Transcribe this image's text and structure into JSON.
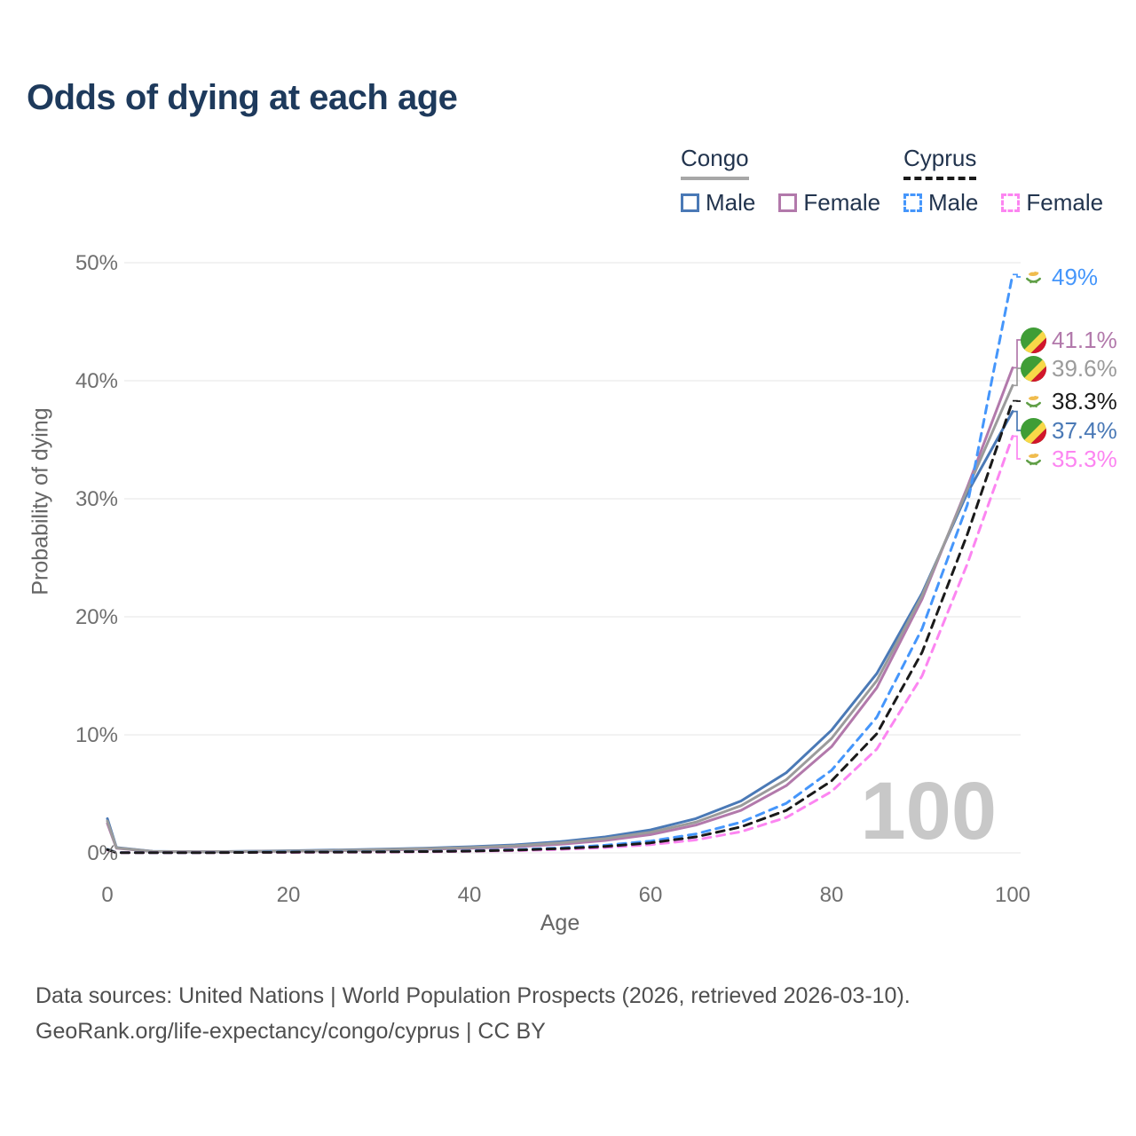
{
  "title": "Odds of dying at each age",
  "legend": {
    "groups": [
      {
        "label": "Congo",
        "line_style": "solid",
        "items": [
          {
            "label": "Male",
            "color": "#4a79b6",
            "dash": "solid"
          },
          {
            "label": "Female",
            "color": "#b279ab",
            "dash": "solid"
          }
        ]
      },
      {
        "label": "Cyprus",
        "line_style": "dashed",
        "items": [
          {
            "label": "Male",
            "color": "#4596fb",
            "dash": "dashed"
          },
          {
            "label": "Female",
            "color": "#fc85f1",
            "dash": "dashed"
          }
        ]
      }
    ]
  },
  "chart_data": {
    "type": "line",
    "title": "Odds of dying at each age",
    "xlabel": "Age",
    "ylabel": "Probability of dying",
    "xlim": [
      0,
      100
    ],
    "ylim": [
      0,
      50
    ],
    "x_ticks": [
      0,
      20,
      40,
      60,
      80,
      100
    ],
    "y_ticks": [
      0,
      10,
      20,
      30,
      40,
      50
    ],
    "y_tick_labels": [
      "0%",
      "10%",
      "20%",
      "30%",
      "40%",
      "50%"
    ],
    "grid": "horizontal",
    "legend_position": "top-right",
    "x": [
      0,
      1,
      5,
      10,
      15,
      20,
      25,
      30,
      35,
      40,
      45,
      50,
      55,
      60,
      65,
      70,
      75,
      80,
      85,
      90,
      95,
      100
    ],
    "unit": "percent probability of dying at each age",
    "series": [
      {
        "name": "Congo Male",
        "country": "Congo",
        "sex": "Male",
        "color": "#4a79b6",
        "dash": "solid",
        "values": [
          2.9,
          0.45,
          0.13,
          0.1,
          0.13,
          0.18,
          0.24,
          0.31,
          0.4,
          0.52,
          0.68,
          0.95,
          1.35,
          1.95,
          2.9,
          4.4,
          6.8,
          10.4,
          15.2,
          22.0,
          30.5,
          37.4
        ]
      },
      {
        "name": "Congo Female",
        "country": "Congo",
        "sex": "Female",
        "color": "#b279ab",
        "dash": "solid",
        "values": [
          2.5,
          0.4,
          0.11,
          0.09,
          0.11,
          0.14,
          0.18,
          0.23,
          0.3,
          0.39,
          0.52,
          0.73,
          1.05,
          1.55,
          2.35,
          3.6,
          5.7,
          9.0,
          14.0,
          21.5,
          31.0,
          41.1
        ]
      },
      {
        "name": "Congo Both sexes",
        "country": "Congo",
        "sex": "Both",
        "color": "#9b9b9b",
        "dash": "solid",
        "values": [
          2.7,
          0.42,
          0.12,
          0.095,
          0.12,
          0.16,
          0.21,
          0.27,
          0.35,
          0.45,
          0.6,
          0.84,
          1.2,
          1.75,
          2.6,
          4.0,
          6.2,
          9.7,
          14.6,
          21.8,
          30.8,
          39.6
        ]
      },
      {
        "name": "Cyprus Male",
        "country": "Cyprus",
        "sex": "Male",
        "color": "#4596fb",
        "dash": "dashed",
        "values": [
          0.3,
          0.03,
          0.02,
          0.02,
          0.05,
          0.08,
          0.09,
          0.1,
          0.13,
          0.18,
          0.27,
          0.42,
          0.65,
          1.0,
          1.6,
          2.6,
          4.2,
          7.0,
          11.5,
          19.0,
          29.5,
          49.0
        ]
      },
      {
        "name": "Cyprus Female",
        "country": "Cyprus",
        "sex": "Female",
        "color": "#fc85f1",
        "dash": "dashed",
        "values": [
          0.25,
          0.02,
          0.015,
          0.015,
          0.03,
          0.04,
          0.05,
          0.06,
          0.09,
          0.13,
          0.19,
          0.29,
          0.45,
          0.7,
          1.1,
          1.8,
          3.0,
          5.2,
          8.8,
          15.0,
          24.5,
          35.3
        ]
      },
      {
        "name": "Cyprus Both sexes",
        "country": "Cyprus",
        "sex": "Both",
        "color": "#1a1a1a",
        "dash": "dashed",
        "values": [
          0.28,
          0.025,
          0.018,
          0.018,
          0.04,
          0.06,
          0.07,
          0.08,
          0.11,
          0.15,
          0.23,
          0.36,
          0.55,
          0.85,
          1.35,
          2.2,
          3.6,
          6.1,
          10.1,
          17.0,
          27.0,
          38.3
        ]
      }
    ],
    "end_labels": [
      {
        "text": "49%",
        "series": "Cyprus Male",
        "color": "#4596fb",
        "flag": "cyprus"
      },
      {
        "text": "41.1%",
        "series": "Congo Female",
        "color": "#b279ab",
        "flag": "congo"
      },
      {
        "text": "39.6%",
        "series": "Congo Both sexes",
        "color": "#9b9b9b",
        "flag": "congo"
      },
      {
        "text": "38.3%",
        "series": "Cyprus Both sexes",
        "color": "#1a1a1a",
        "flag": "cyprus"
      },
      {
        "text": "37.4%",
        "series": "Congo Male",
        "color": "#4a79b6",
        "flag": "congo"
      },
      {
        "text": "35.3%",
        "series": "Cyprus Female",
        "color": "#fc85f1",
        "flag": "cyprus"
      }
    ],
    "watermark": "100"
  },
  "footer": {
    "line1": "Data sources: United Nations | World Population Prospects (2026, retrieved 2026-03-10).",
    "line2": "GeoRank.org/life-expectancy/congo/cyprus | CC BY"
  }
}
